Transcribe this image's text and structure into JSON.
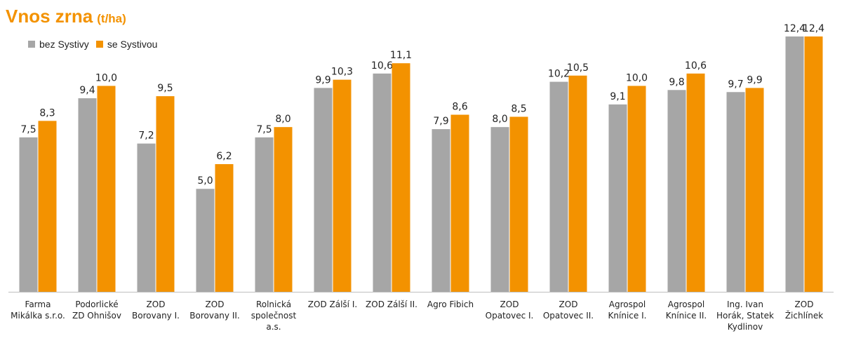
{
  "header": {
    "title": "Vnos zrna",
    "unit": "(t/ha)"
  },
  "legend": {
    "placement": "top-left",
    "items": [
      {
        "label": "bez Systivy",
        "color": "#a6a6a6"
      },
      {
        "label": "se Systivou",
        "color": "#f39200"
      }
    ]
  },
  "chart_data": {
    "type": "bar",
    "title": "Vnos zrna",
    "unit": "(t/ha)",
    "categories": [
      [
        "Farma",
        "Mikálka s.r.o."
      ],
      [
        "Podorlické",
        "ZD Ohnišov"
      ],
      [
        "ZOD",
        "Borovany I."
      ],
      [
        "ZOD",
        "Borovany II."
      ],
      [
        "Rolnická",
        "společnost",
        "a.s."
      ],
      [
        "ZOD Zálší I."
      ],
      [
        "ZOD Zálší II."
      ],
      [
        "Agro Fibich"
      ],
      [
        "ZOD",
        "Opatovec I."
      ],
      [
        "ZOD",
        "Opatovec II."
      ],
      [
        "Agrospol",
        "Knínice I."
      ],
      [
        "Agrospol",
        "Knínice II."
      ],
      [
        "Ing. Ivan",
        "Horák, Statek",
        "Kydlinov"
      ],
      [
        "ZOD",
        "Žichlínek"
      ]
    ],
    "series": [
      {
        "name": "bez Systivy",
        "color": "#a6a6a6",
        "values": [
          7.5,
          9.4,
          7.2,
          5.0,
          7.5,
          9.9,
          10.6,
          7.9,
          8.0,
          10.2,
          9.1,
          9.8,
          9.7,
          12.4
        ],
        "labels": [
          "7,5",
          "9,4",
          "7,2",
          "5,0",
          "7,5",
          "9,9",
          "10,6",
          "7,9",
          "8,0",
          "10,2",
          "9,1",
          "9,8",
          "9,7",
          "12,4"
        ]
      },
      {
        "name": "se Systivou",
        "color": "#f39200",
        "values": [
          8.3,
          10.0,
          9.5,
          6.2,
          8.0,
          10.3,
          11.1,
          8.6,
          8.5,
          10.5,
          10.0,
          10.6,
          9.9,
          12.4
        ],
        "labels": [
          "8,3",
          "10,0",
          "9,5",
          "6,2",
          "8,0",
          "10,3",
          "11,1",
          "8,6",
          "8,5",
          "10,5",
          "10,0",
          "10,6",
          "9,9",
          "12,4"
        ]
      }
    ],
    "ylim": [
      0,
      12.4
    ],
    "grid": false,
    "xlabel": "",
    "ylabel": ""
  }
}
